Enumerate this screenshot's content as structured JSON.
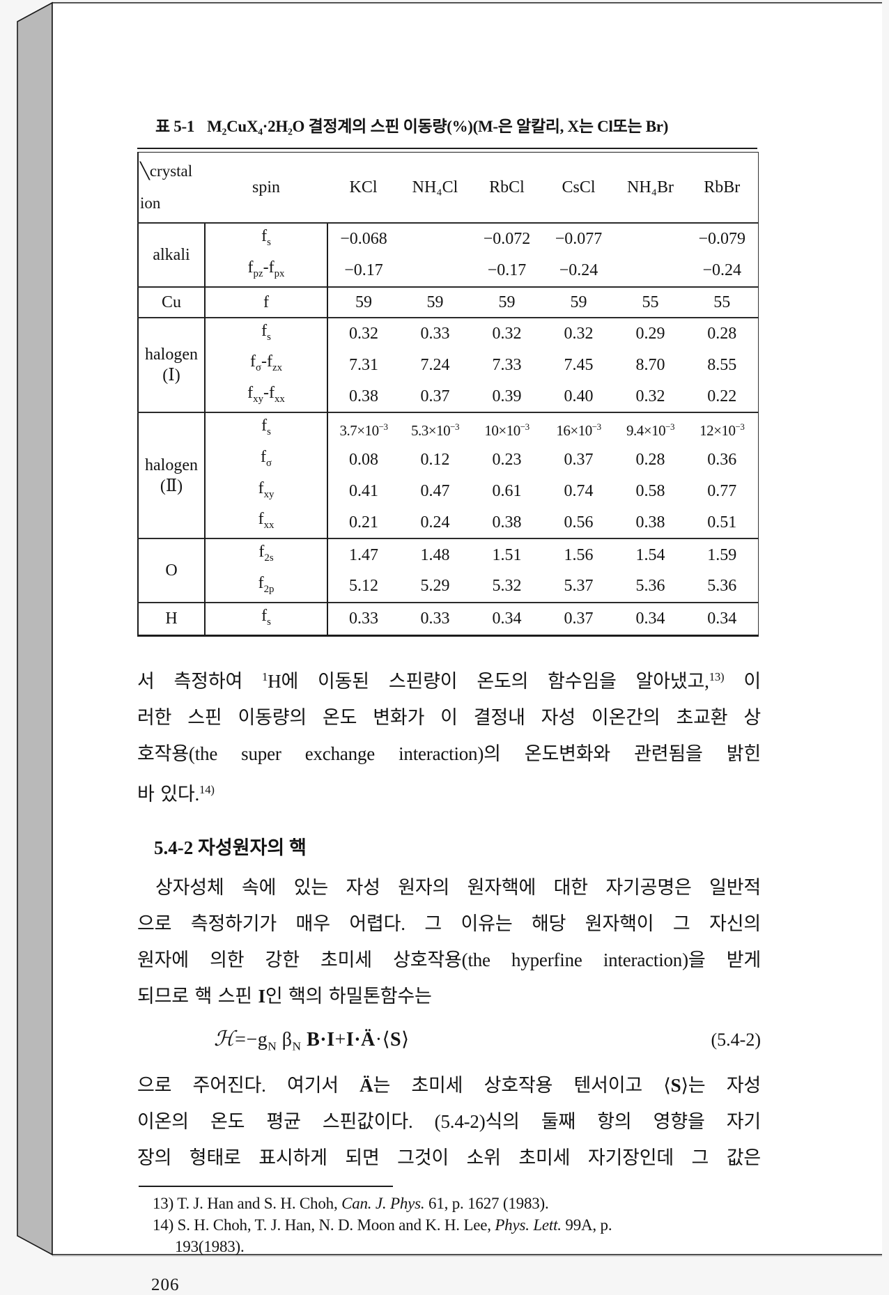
{
  "page": {
    "number": "206"
  },
  "colors": {
    "background": "#f6f6f6",
    "page": "#ffffff",
    "spine": "#b9b9b9",
    "ink": "#141414"
  },
  "table": {
    "caption_no": "표 5-1",
    "caption_text": "M₂CuX₄·2H₂O 결정계의 스핀 이동량(%)(M-은 알칼리, X는 Cl또는 Br)",
    "corner_top": "╲crystal",
    "corner_bottom": "ion",
    "spin_header": "spin",
    "columns": [
      "KCl",
      "NH₄Cl",
      "RbCl",
      "CsCl",
      "NH₄Br",
      "RbBr"
    ],
    "groups": [
      {
        "ion": "alkali",
        "rows": [
          {
            "spin": "f<sub>s</sub>",
            "values": [
              "−0.068",
              "",
              "−0.072",
              "−0.077",
              "",
              "−0.079"
            ]
          },
          {
            "spin": "f<sub>pz</sub>-f<sub>px</sub>",
            "values": [
              "−0.17",
              "",
              "−0.17",
              "−0.24",
              "",
              "−0.24"
            ]
          }
        ]
      },
      {
        "ion": "Cu",
        "rows": [
          {
            "spin": "f",
            "values": [
              "59",
              "59",
              "59",
              "59",
              "55",
              "55"
            ]
          }
        ]
      },
      {
        "ion": "halogen<br>(Ⅰ)",
        "rows": [
          {
            "spin": "f<sub>s</sub>",
            "values": [
              "0.32",
              "0.33",
              "0.32",
              "0.32",
              "0.29",
              "0.28"
            ]
          },
          {
            "spin": "f<sub>σ</sub>-f<sub>zx</sub>",
            "values": [
              "7.31",
              "7.24",
              "7.33",
              "7.45",
              "8.70",
              "8.55"
            ]
          },
          {
            "spin": "f<sub>xy</sub>-f<sub>xx</sub>",
            "values": [
              "0.38",
              "0.37",
              "0.39",
              "0.40",
              "0.32",
              "0.22"
            ]
          }
        ]
      },
      {
        "ion": "halogen<br>(Ⅱ)",
        "rows": [
          {
            "spin": "f<sub>s</sub>",
            "values": [
              "3.7×10<sup>−3</sup>",
              "5.3×10<sup>−3</sup>",
              "10×10<sup>−3</sup>",
              "16×10<sup>−3</sup>",
              "9.4×10<sup>−3</sup>",
              "12×10<sup>−3</sup>"
            ]
          },
          {
            "spin": "f<sub>σ</sub>",
            "values": [
              "0.08",
              "0.12",
              "0.23",
              "0.37",
              "0.28",
              "0.36"
            ]
          },
          {
            "spin": "f<sub>xy</sub>",
            "values": [
              "0.41",
              "0.47",
              "0.61",
              "0.74",
              "0.58",
              "0.77"
            ]
          },
          {
            "spin": "f<sub>xx</sub>",
            "values": [
              "0.21",
              "0.24",
              "0.38",
              "0.56",
              "0.38",
              "0.51"
            ]
          }
        ]
      },
      {
        "ion": "O",
        "rows": [
          {
            "spin": "f<sub>2s</sub>",
            "values": [
              "1.47",
              "1.48",
              "1.51",
              "1.56",
              "1.54",
              "1.59"
            ]
          },
          {
            "spin": "f<sub>2p</sub>",
            "values": [
              "5.12",
              "5.29",
              "5.32",
              "5.37",
              "5.36",
              "5.36"
            ]
          }
        ]
      },
      {
        "ion": "H",
        "rows": [
          {
            "spin": "f<sub>s</sub>",
            "values": [
              "0.33",
              "0.33",
              "0.34",
              "0.37",
              "0.34",
              "0.34"
            ]
          }
        ]
      }
    ]
  },
  "body": {
    "para1": [
      "서 측정하여 <sup>1</sup>H에 이동된 스핀량이 온도의 함수임을 알아냈고,<sup>13)</sup> 이",
      "러한 스핀 이동량의 온도 변화가 이 결정내 자성 이온간의 초교환 상",
      "호작용(the super exchange interaction)의 온도변화와 관련됨을 밝힌",
      "바 있다.<sup>14)</sup>"
    ],
    "section_heading": "5.4-2  자성원자의 핵",
    "para2": [
      "상자성체 속에 있는 자성 원자의 원자핵에 대한 자기공명은 일반적",
      "으로 측정하기가 매우 어렵다. 그 이유는 해당 원자핵이 그 자신의",
      "원자에 의한 강한 초미세 상호작용(the hyperfine interaction)을 받게",
      "되므로 핵 스핀 <b>I</b>인 핵의 하밀톤함수는"
    ],
    "equation": "<span class=\"scrH\">ℋ</span>=−g<sub>N</sub> β<sub>N</sub> <b>B·I</b>+<b>I·Ä</b>·⟨<b>S</b>⟩",
    "equation_number": "(5.4-2)",
    "para3": [
      "으로 주어진다. 여기서 <b>Ä</b>는 초미세 상호작용 텐서이고 ⟨<b>S</b>⟩는 자성",
      "이온의 온도 평균 스핀값이다. (5.4-2)식의 둘째 항의 영향을 자기",
      "장의 형태로 표시하게 되면 그것이 소위 초미세 자기장인데 그 값은"
    ]
  },
  "footnotes": [
    "13) T. J. Han and S. H. Choh, <i>Can. J. Phys.</i> 61, p. 1627 (1983).",
    "14) S. H. Choh, T. J. Han, N. D. Moon and K. H. Lee, <i>Phys. Lett.</i> 99A, p.",
    "193(1983)."
  ]
}
